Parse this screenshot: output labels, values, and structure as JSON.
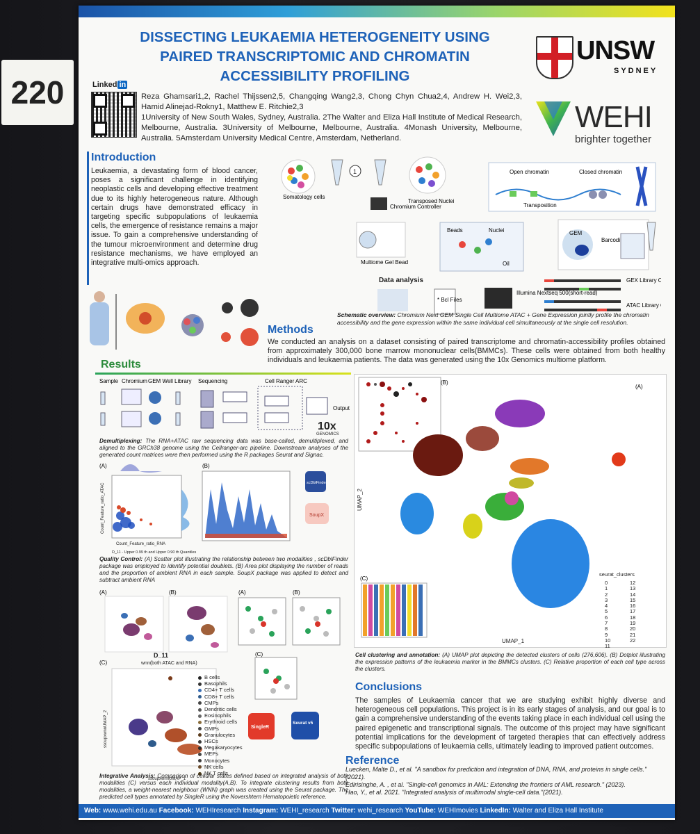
{
  "board_number": "220",
  "poster": {
    "title_lines": [
      "DISSECTING LEUKAEMIA HETEROGENEITY USING",
      "PAIRED TRANSCRIPTOMIC AND CHROMATIN",
      "ACCESSIBILITY PROFILING"
    ],
    "linkedin_label": "Linked",
    "linkedin_in": "in",
    "authors": "Reza Ghamsari1,2, Rachel Thijssen2,5, Changqing Wang2,3, Chong Chyn Chua2,4, Andrew H. Wei2,3, Hamid Alinejad-Rokny1, Matthew E. Ritchie2,3",
    "affiliations": "1University of New South Wales, Sydney, Australia. 2The Walter and Eliza Hall Institute of Medical Research, Melbourne, Australia. 3University of Melbourne, Melbourne, Australia. 4Monash University, Melbourne, Australia. 5Amsterdam University Medical Centre, Amsterdam, Netherland.",
    "logos": {
      "unsw": "UNSW",
      "unsw_sub": "SYDNEY",
      "wehi": "WEHI",
      "wehi_tagline": "brighter together"
    },
    "introduction": {
      "heading": "Introduction",
      "text": "Leukaemia, a devastating form of blood cancer, poses a significant challenge in identifying neoplastic cells and developing effective treatment due to its highly heterogeneous nature. Although certain drugs have demonstrated efficacy in targeting specific subpopulations of leukaemia cells, the emergence of resistance remains a major issue. To gain a comprehensive understanding of the tumour microenvironment and determine drug resistance mechanisms, we have employed an integrative multi-omics approach."
    },
    "schematic": {
      "labels": {
        "somatology": "Somatology cells",
        "transposed": "Transposed Nuclei",
        "chromium": "Chromium Controller",
        "open": "Open chromatin",
        "closed": "Closed chromatin",
        "transposition": "Transposition",
        "beads": "Beads",
        "nuclei": "Nuclei",
        "oil": "Oil",
        "gem": "GEM",
        "barcoding": "Barcoding",
        "multiome": "Multiome Gel Bead",
        "gex": "GEX Library Construction",
        "atac": "ATAC Library Construction",
        "illumina": "Illumina Nextseq 500(short-read)",
        "data_analysis": "Data analysis",
        "cell_files": "* Bcl Files"
      },
      "caption_bold": "Schematic overview:",
      "caption": " Chromium Next GEM Single Cell Multiome ATAC + Gene Expression jointly profile the chromatin accessibility and the gene expression within the same individual cell simultaneously at the single cell resolution."
    },
    "methods": {
      "heading": "Methods",
      "text": "We conducted an analysis on a dataset consisting of paired transcriptome and chromatin-accessibility profiles obtained from approximately 300,000 bone marrow mononuclear cells(BMMCs). These cells were obtained from both healthy individuals and leukaemia patients. The data was generated using the 10x Genomics multiome platform."
    },
    "results": {
      "heading": "Results",
      "pipeline_labels": [
        "Sample",
        "Chromium",
        "GEM Well",
        "Library",
        "Sequencing",
        "Cell Ranger ARC",
        "Output"
      ],
      "tenx": "10x",
      "tenx_sub": "GENOMICS",
      "demux_bold": "Demultiplexing:",
      "demux_caption": " The RNA+ATAC raw sequencing data was base-called, demultiplexed, and aligned to the GRCh38 genome using the Cellranger-arc pipeline. Downstream analyses of the generated count matrices were then performed using the R packages Seurat and Signac.",
      "qc_bold": "Quality Control:",
      "qc_caption": " (A) Scatter plot illustrating the relationship between two modalities , scDblFinder package was employed to identify potential doublets. (B) Area plot displaying the number of reads and the proportion of ambient RNA in each sample. SoupX package was applied to detect and subtract ambient RNA",
      "qc_axis_x": "Count_Feature_ratio_RNA",
      "qc_axis_y": "Count_Feature_ratio_ATAC",
      "qc_footnote": "D_11 - Upper 0.99 th and Upper 0.90 th Quantiles",
      "scdblfinder": "scDblFinder",
      "soupx": "SoupX",
      "integration_label_d11": "D_11",
      "integration_label_wnn": "wnn(both ATAC and RNA)",
      "integration_axis_x": "ssoupxwnnUMAP_1",
      "integration_axis_y": "ssoupxwnnUMAP_2",
      "cell_types": [
        "B cells",
        "Basophils",
        "CD4+ T cells",
        "CD8+ T cells",
        "CMPs",
        "Dendritic cells",
        "Eosinophils",
        "Erythroid cells",
        "GMPs",
        "Granulocytes",
        "HSCs",
        "Megakaryocytes",
        "MEPs",
        "Monocytes",
        "NK cells",
        "NK T cells"
      ],
      "cell_type_colors": [
        "#222222",
        "#333333",
        "#3b6fb5",
        "#2e5b8c",
        "#444444",
        "#555555",
        "#666666",
        "#8a6d3b",
        "#444444",
        "#5a3a1a",
        "#3a3a3a",
        "#2b2b2b",
        "#444444",
        "#3d3d3d",
        "#6b4b2b",
        "#4b3b1b"
      ],
      "singler": "SingleR",
      "seurat": "Seurat v5",
      "integ_bold": "Integrative Analysis:",
      "integ_caption": " Comparison of cellular states defined based on integrated analysis of both modalities (C) versus each individual modality(A,B). To integrate clustering results from both modalities, a weight-nearest neighbour (WNN) graph was created using the Seurat package. The predicted cell types annotated by SingleR using the Novershtern Hematopoietic reference.",
      "umap_x": "UMAP_1",
      "umap_y": "UMAP_2",
      "seurat_clusters_label": "seurat_clusters",
      "seurat_clusters": [
        "0",
        "1",
        "2",
        "3",
        "4",
        "5",
        "6",
        "7",
        "8",
        "9",
        "10",
        "11",
        "12",
        "13",
        "14",
        "15",
        "16",
        "17",
        "18",
        "19",
        "20",
        "21",
        "22"
      ],
      "umap_bold": "Cell clustering and annotation:",
      "umap_caption": " (A) UMAP plot depicting the detected clusters of cells (276,606). (B) Dotplot illustrating the expression patterns of the leukaemia marker in the BMMCs clusters. (C) Relative proportion of each cell type across the clusters.",
      "panel_labels": [
        "(A)",
        "(B)",
        "(C)"
      ]
    },
    "conclusions": {
      "heading": "Conclusions",
      "text": "The samples of Leukaemia cancer that we are studying exhibit highly diverse and heterogeneous cell populations. This project is in its early stages of analysis, and our goal is to gain a comprehensive understanding of the  events taking place in each individual cell using the paired epigenetic and transcriptional signals. The outcome of this project may have significant potential implications for the development of targeted therapies that can effectively address specific subpopulations of leukaemia cells, ultimately leading to improved patient outcomes."
    },
    "reference": {
      "heading": "Reference",
      "items": [
        "Luecken, Malte D., et al. \"A sandbox for prediction and integration of DNA, RNA, and proteins in single cells.\" (2021).",
        "Edirisinghe, A. , et al. \"Single-cell genomics in AML: Extending the frontiers of AML research.\" (2023).",
        "Hao, Y., et al. 2021. \"Integrated analysis of multimodal single-cell data.\"(2021)."
      ]
    },
    "footer": [
      {
        "label": "Web:",
        "value": " www.wehi.edu.au "
      },
      {
        "label": "Facebook:",
        "value": " WEHIresearch "
      },
      {
        "label": "Instagram:",
        "value": " WEHI_research "
      },
      {
        "label": "Twitter:",
        "value": " wehi_research "
      },
      {
        "label": "YouTube:",
        "value": " WEHImovies "
      },
      {
        "label": "LinkedIn:",
        "value": " Walter and Eliza Hall Institute"
      }
    ],
    "colors": {
      "title_blue": "#1e62b8",
      "results_green": "#2a8a3a",
      "unsw_red": "#d21f26"
    }
  }
}
